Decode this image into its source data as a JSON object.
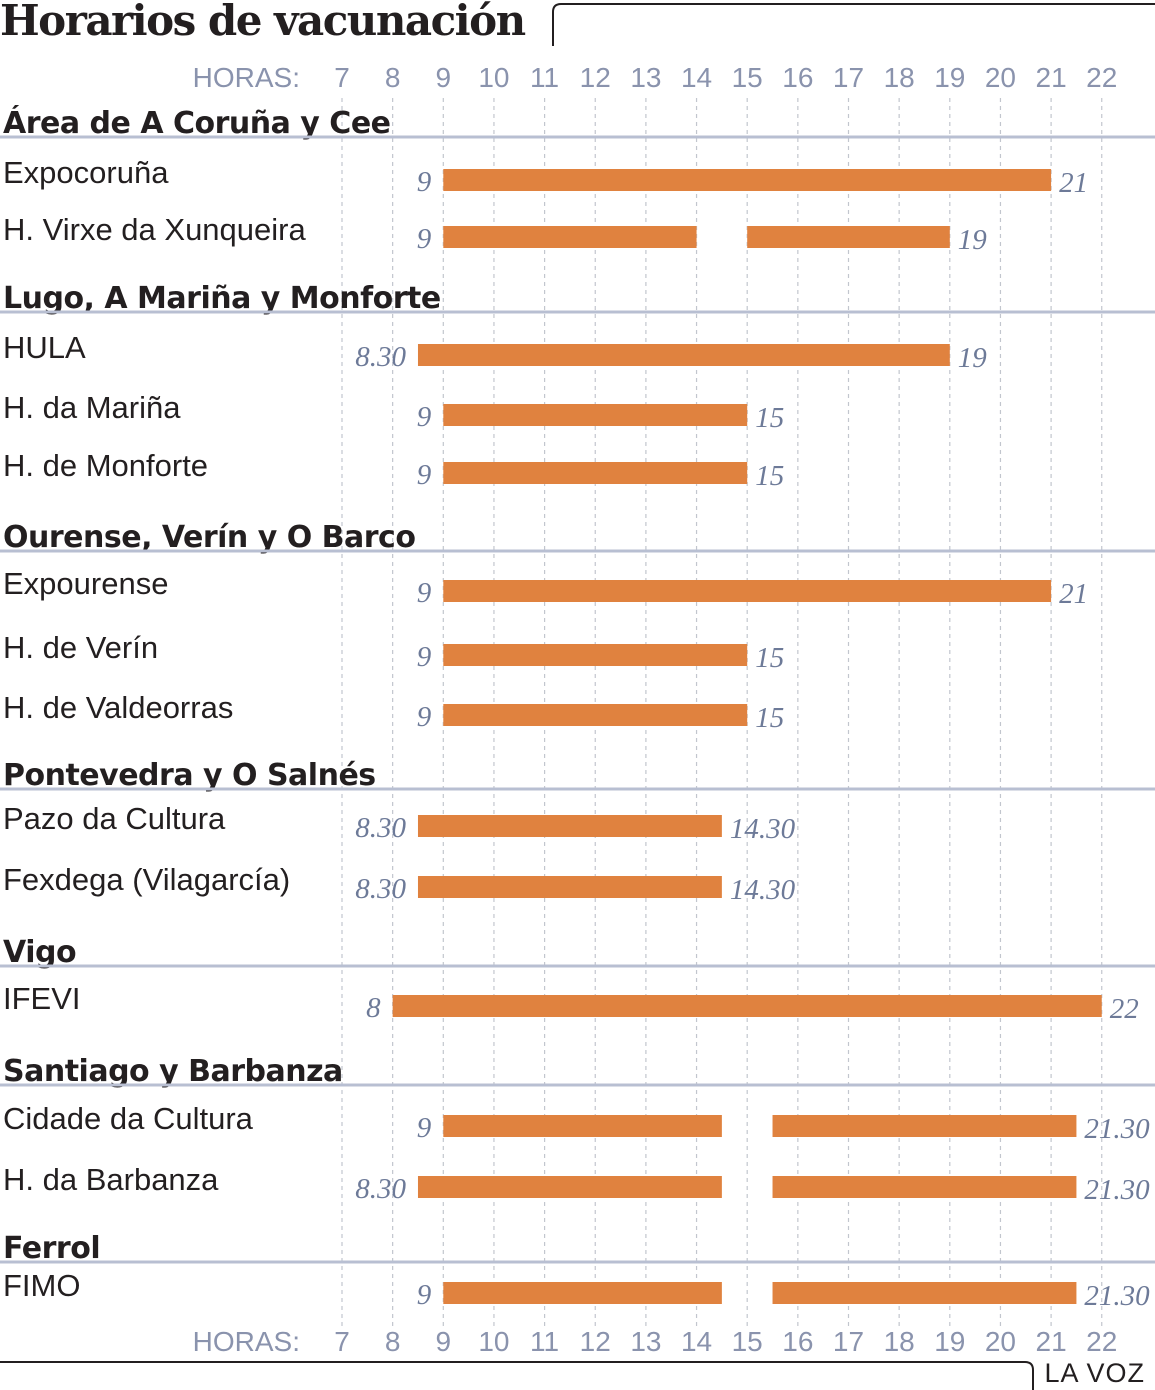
{
  "title": "Horarios de vacunación",
  "credit": "LA VOZ",
  "colors": {
    "bar": "#e0823f",
    "axis": "#8a93ad",
    "sep": "#b8bfd2",
    "grid": "#c2c6ce",
    "text": "#231f20",
    "hours": "#6d7a98"
  },
  "chart_data": {
    "type": "gantt",
    "axis_label": "HORAS:",
    "hours": [
      7,
      8,
      9,
      10,
      11,
      12,
      13,
      14,
      15,
      16,
      17,
      18,
      19,
      20,
      21,
      22
    ],
    "groups": [
      {
        "name": "Área de A Coruña y Cee",
        "rows": [
          {
            "name": "Expocoruña",
            "segments": [
              [
                9,
                21
              ]
            ],
            "start_label": "9",
            "end_label": "21"
          },
          {
            "name": "H. Virxe da Xunqueira",
            "segments": [
              [
                9,
                14
              ],
              [
                15,
                19
              ]
            ],
            "start_label": "9",
            "end_label": "19"
          }
        ]
      },
      {
        "name": "Lugo, A Mariña y Monforte",
        "rows": [
          {
            "name": "HULA",
            "segments": [
              [
                8.5,
                19
              ]
            ],
            "start_label": "8.30",
            "end_label": "19"
          },
          {
            "name": "H. da Mariña",
            "segments": [
              [
                9,
                15
              ]
            ],
            "start_label": "9",
            "end_label": "15"
          },
          {
            "name": "H. de Monforte",
            "segments": [
              [
                9,
                15
              ]
            ],
            "start_label": "9",
            "end_label": "15"
          }
        ]
      },
      {
        "name": "Ourense, Verín y O Barco",
        "rows": [
          {
            "name": "Expourense",
            "segments": [
              [
                9,
                21
              ]
            ],
            "start_label": "9",
            "end_label": "21"
          },
          {
            "name": "H. de Verín",
            "segments": [
              [
                9,
                15
              ]
            ],
            "start_label": "9",
            "end_label": "15"
          },
          {
            "name": "H. de Valdeorras",
            "segments": [
              [
                9,
                15
              ]
            ],
            "start_label": "9",
            "end_label": "15"
          }
        ]
      },
      {
        "name": "Pontevedra y O Salnés",
        "rows": [
          {
            "name": "Pazo da Cultura",
            "segments": [
              [
                8.5,
                14.5
              ]
            ],
            "start_label": "8.30",
            "end_label": "14.30"
          },
          {
            "name": "Fexdega (Vilagarcía)",
            "segments": [
              [
                8.5,
                14.5
              ]
            ],
            "start_label": "8.30",
            "end_label": "14.30"
          }
        ]
      },
      {
        "name": "Vigo",
        "rows": [
          {
            "name": "IFEVI",
            "segments": [
              [
                8,
                22
              ]
            ],
            "start_label": "8",
            "end_label": "22"
          }
        ]
      },
      {
        "name": "Santiago y Barbanza",
        "rows": [
          {
            "name": "Cidade da Cultura",
            "segments": [
              [
                9,
                14.5
              ],
              [
                15.5,
                21.5
              ]
            ],
            "start_label": "9",
            "end_label": "21.30"
          },
          {
            "name": "H. da Barbanza",
            "segments": [
              [
                8.5,
                14.5
              ],
              [
                15.5,
                21.5
              ]
            ],
            "start_label": "8.30",
            "end_label": "21.30"
          }
        ]
      },
      {
        "name": "Ferrol",
        "rows": [
          {
            "name": "FIMO",
            "segments": [
              [
                9,
                14.5
              ],
              [
                15.5,
                21.5
              ]
            ],
            "start_label": "9",
            "end_label": "21.30"
          }
        ]
      }
    ]
  }
}
